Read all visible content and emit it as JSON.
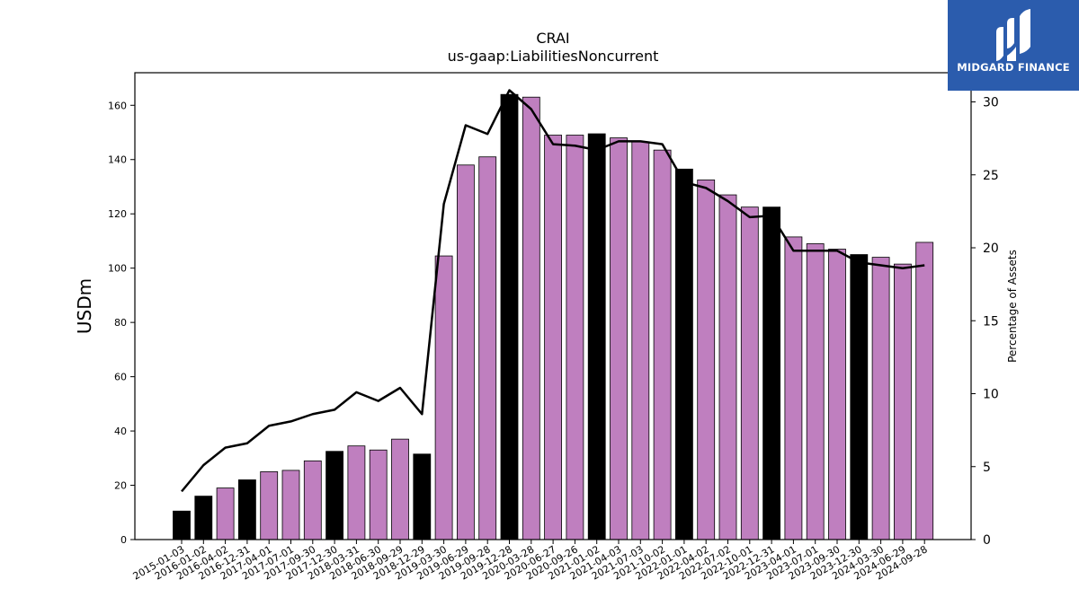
{
  "brand": {
    "name": "MIDGARD FINANCE",
    "color": "#2b5cad",
    "icon": "midgard-logo-icon"
  },
  "colors": {
    "bar_regular": "#bf7fbf",
    "bar_highlight": "#000000",
    "line": "#000000"
  },
  "chart_data": {
    "type": "bar",
    "title": "CRAI",
    "subtitle": "us-gaap:LiabilitiesNoncurrent",
    "ylabel": "USDm",
    "ylabel_right": "Percentage of Assets",
    "ylim": [
      0,
      172
    ],
    "ylim_right": [
      0,
      32
    ],
    "yticks": [
      0,
      20,
      40,
      60,
      80,
      100,
      120,
      140,
      160
    ],
    "yticks_right": [
      0,
      5,
      10,
      15,
      20,
      25,
      30
    ],
    "categories": [
      "2015-01-03",
      "2016-01-02",
      "2016-04-02",
      "2016-12-31",
      "2017-04-01",
      "2017-07-01",
      "2017-09-30",
      "2017-12-30",
      "2018-03-31",
      "2018-06-30",
      "2018-09-29",
      "2018-12-29",
      "2019-03-30",
      "2019-06-29",
      "2019-09-28",
      "2019-12-28",
      "2020-03-28",
      "2020-06-27",
      "2020-09-26",
      "2021-01-02",
      "2021-04-03",
      "2021-07-03",
      "2021-10-02",
      "2022-01-01",
      "2022-04-02",
      "2022-07-02",
      "2022-10-01",
      "2022-12-31",
      "2023-04-01",
      "2023-07-01",
      "2023-09-30",
      "2023-12-30",
      "2024-03-30",
      "2024-06-29",
      "2024-09-28"
    ],
    "series": [
      {
        "type": "bar",
        "values": [
          10.5,
          16,
          19,
          22,
          25,
          25.5,
          29,
          32.5,
          34.5,
          33,
          37,
          31.5,
          104.5,
          138,
          141,
          164,
          163,
          149,
          149,
          149.5,
          148,
          146.5,
          143.5,
          136.5,
          132.5,
          127,
          122.5,
          122.5,
          111.5,
          109,
          107,
          105,
          104,
          101.5,
          109.5
        ],
        "highlight": [
          true,
          true,
          false,
          true,
          false,
          false,
          false,
          true,
          false,
          false,
          false,
          true,
          false,
          false,
          false,
          true,
          false,
          false,
          false,
          true,
          false,
          false,
          false,
          true,
          false,
          false,
          false,
          true,
          false,
          false,
          false,
          true,
          false,
          false,
          false
        ]
      },
      {
        "type": "line",
        "axis": "right",
        "values": [
          3.3,
          5.1,
          6.3,
          6.6,
          7.8,
          8.1,
          8.6,
          8.9,
          10.1,
          9.5,
          10.4,
          8.6,
          23.0,
          28.4,
          27.8,
          30.8,
          29.5,
          27.1,
          27.0,
          26.7,
          27.3,
          27.3,
          27.1,
          24.5,
          24.1,
          23.2,
          22.1,
          22.2,
          19.8,
          19.8,
          19.8,
          19.0,
          18.8,
          18.6,
          18.8
        ]
      }
    ]
  }
}
